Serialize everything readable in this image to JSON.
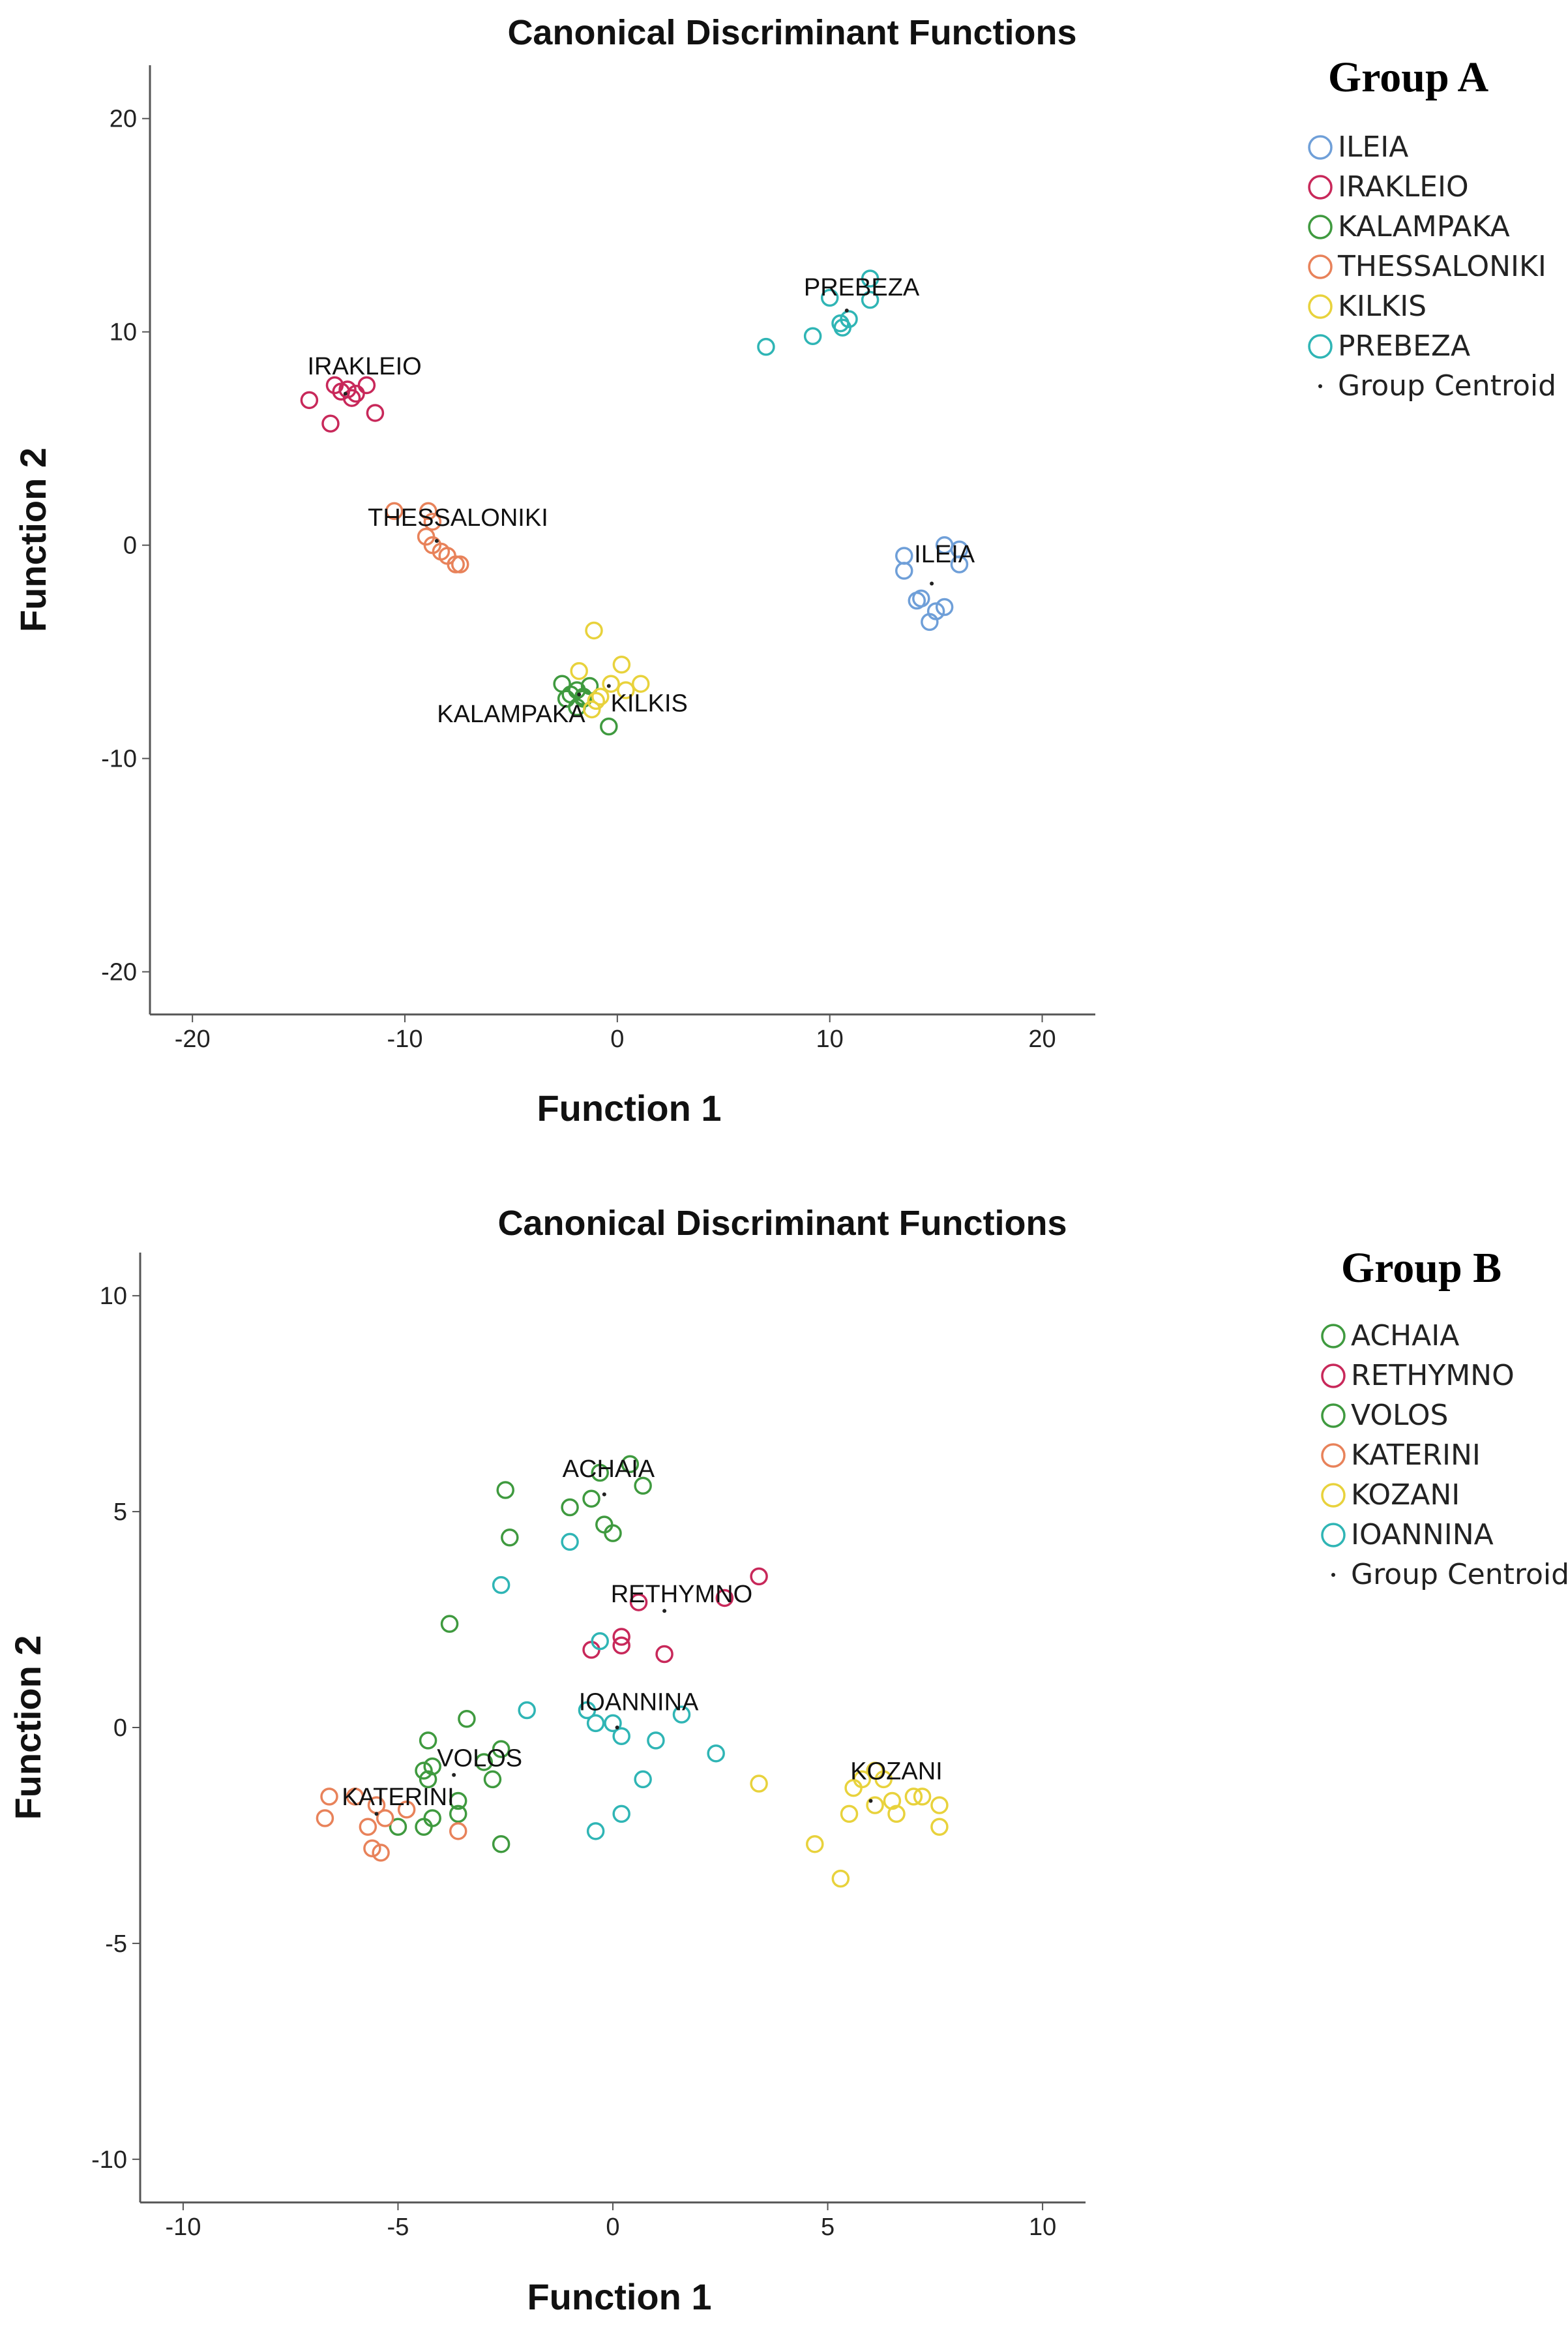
{
  "chart_data": [
    {
      "type": "scatter",
      "title": "Canonical Discriminant Functions",
      "xlabel": "Function 1",
      "ylabel": "Function 2",
      "xlim": [
        -22,
        22.5
      ],
      "ylim": [
        -22,
        22.5
      ],
      "xticks": [
        -20,
        -10,
        0,
        10,
        20
      ],
      "yticks": [
        20,
        10,
        0,
        -10,
        -20
      ],
      "legend_title": "Group A",
      "centroid_label": "Group Centroid",
      "series": [
        {
          "name": "ILEIA",
          "color": "#6f9fd8",
          "points": [
            [
              15.4,
              0
            ],
            [
              16.1,
              -0.2
            ],
            [
              16.1,
              -0.9
            ],
            [
              13.5,
              -0.5
            ],
            [
              13.5,
              -1.2
            ],
            [
              14.1,
              -2.6
            ],
            [
              14.3,
              -2.5
            ],
            [
              15.0,
              -3.1
            ],
            [
              15.4,
              -2.9
            ],
            [
              14.7,
              -3.6
            ]
          ],
          "centroid": [
            14.8,
            -1.8
          ],
          "label_pos": [
            15.4,
            -0.8
          ]
        },
        {
          "name": "IRAKLEIO",
          "color": "#c8285a",
          "points": [
            [
              -14.5,
              6.8
            ],
            [
              -13.3,
              7.5
            ],
            [
              -13.0,
              7.2
            ],
            [
              -12.7,
              7.3
            ],
            [
              -12.3,
              7.1
            ],
            [
              -12.5,
              6.9
            ],
            [
              -11.8,
              7.5
            ],
            [
              -11.4,
              6.2
            ],
            [
              -13.5,
              5.7
            ]
          ],
          "centroid": [
            -12.8,
            7.1
          ],
          "label_pos": [
            -11.9,
            8.0
          ]
        },
        {
          "name": "KALAMPAKA",
          "color": "#3f9a3f",
          "points": [
            [
              -2.6,
              -6.5
            ],
            [
              -2.2,
              -7.0
            ],
            [
              -1.9,
              -6.8
            ],
            [
              -1.6,
              -7.2
            ],
            [
              -1.3,
              -6.6
            ],
            [
              -1.9,
              -7.6
            ],
            [
              -1.6,
              -7.1
            ],
            [
              -2.4,
              -7.2
            ],
            [
              -0.4,
              -8.5
            ]
          ],
          "centroid": [
            -1.8,
            -7.0
          ],
          "label_pos": [
            -5.0,
            -8.3
          ]
        },
        {
          "name": "THESSALONIKI",
          "color": "#e8825a",
          "points": [
            [
              -10.5,
              1.6
            ],
            [
              -8.9,
              1.6
            ],
            [
              -8.7,
              1.1
            ],
            [
              -9.0,
              0.4
            ],
            [
              -8.7,
              0.0
            ],
            [
              -8.3,
              -0.3
            ],
            [
              -8.0,
              -0.5
            ],
            [
              -7.6,
              -0.9
            ],
            [
              -7.4,
              -0.9
            ]
          ],
          "centroid": [
            -8.5,
            0.2
          ],
          "label_pos": [
            -7.5,
            0.9
          ]
        },
        {
          "name": "KILKIS",
          "color": "#e8d23c",
          "points": [
            [
              -1.1,
              -4.0
            ],
            [
              -1.8,
              -5.9
            ],
            [
              0.2,
              -5.6
            ],
            [
              1.1,
              -6.5
            ],
            [
              -0.3,
              -6.5
            ],
            [
              -1.2,
              -7.7
            ],
            [
              -0.8,
              -7.1
            ],
            [
              0.4,
              -6.8
            ],
            [
              -1.0,
              -7.3
            ]
          ],
          "centroid": [
            -0.4,
            -6.6
          ],
          "label_pos": [
            1.5,
            -7.8
          ]
        },
        {
          "name": "PREBEZA",
          "color": "#2fb5b5",
          "points": [
            [
              11.9,
              12.5
            ],
            [
              10.0,
              11.6
            ],
            [
              11.9,
              11.5
            ],
            [
              10.9,
              10.6
            ],
            [
              10.6,
              10.2
            ],
            [
              10.5,
              10.4
            ],
            [
              9.2,
              9.8
            ],
            [
              7.0,
              9.3
            ]
          ],
          "centroid": [
            10.8,
            11.0
          ],
          "label_pos": [
            11.5,
            11.7
          ]
        }
      ]
    },
    {
      "type": "scatter",
      "title": "Canonical Discriminant Functions",
      "xlabel": "Function 1",
      "ylabel": "Function 2",
      "xlim": [
        -11,
        11
      ],
      "ylim": [
        -11,
        11
      ],
      "xticks": [
        -10,
        -5,
        0,
        5,
        10
      ],
      "yticks": [
        10,
        5,
        0,
        -5,
        -10
      ],
      "legend_title": "Group B",
      "centroid_label": "Group Centroid",
      "series": [
        {
          "name": "ACHAIA",
          "color": "#3f9a3f",
          "points": [
            [
              0.4,
              6.1
            ],
            [
              -0.3,
              5.9
            ],
            [
              0.7,
              5.6
            ],
            [
              -2.5,
              5.5
            ],
            [
              -1.0,
              5.1
            ],
            [
              -0.5,
              5.3
            ],
            [
              -0.2,
              4.7
            ],
            [
              0.0,
              4.5
            ],
            [
              -2.4,
              4.4
            ]
          ],
          "centroid": [
            -0.2,
            5.4
          ],
          "label_pos": [
            -0.1,
            5.8
          ]
        },
        {
          "name": "RETHYMNO",
          "color": "#c8285a",
          "points": [
            [
              3.4,
              3.5
            ],
            [
              2.6,
              3.0
            ],
            [
              0.6,
              2.9
            ],
            [
              0.2,
              2.1
            ],
            [
              0.2,
              1.9
            ],
            [
              -0.5,
              1.8
            ],
            [
              1.2,
              1.7
            ]
          ],
          "centroid": [
            1.2,
            2.7
          ],
          "label_pos": [
            1.6,
            2.9
          ]
        },
        {
          "name": "VOLOS",
          "color": "#3f9a3f",
          "points": [
            [
              -3.8,
              2.4
            ],
            [
              -3.4,
              0.2
            ],
            [
              -4.3,
              -0.3
            ],
            [
              -4.2,
              -0.9
            ],
            [
              -4.4,
              -1.0
            ],
            [
              -4.3,
              -1.2
            ],
            [
              -2.6,
              -0.5
            ],
            [
              -3.0,
              -0.8
            ],
            [
              -2.8,
              -1.2
            ],
            [
              -3.6,
              -1.7
            ],
            [
              -3.6,
              -2.0
            ],
            [
              -4.2,
              -2.1
            ],
            [
              -5.0,
              -2.3
            ],
            [
              -4.4,
              -2.3
            ],
            [
              -2.6,
              -2.7
            ]
          ],
          "centroid": [
            -3.7,
            -1.1
          ],
          "label_pos": [
            -3.1,
            -0.9
          ]
        },
        {
          "name": "KATERINI",
          "color": "#e8825a",
          "points": [
            [
              -6.6,
              -1.6
            ],
            [
              -6.0,
              -1.6
            ],
            [
              -5.5,
              -1.8
            ],
            [
              -5.3,
              -2.1
            ],
            [
              -4.8,
              -1.9
            ],
            [
              -5.7,
              -2.3
            ],
            [
              -6.7,
              -2.1
            ],
            [
              -3.6,
              -2.4
            ],
            [
              -5.6,
              -2.8
            ],
            [
              -5.4,
              -2.9
            ]
          ],
          "centroid": [
            -5.5,
            -2.0
          ],
          "label_pos": [
            -5.0,
            -1.8
          ]
        },
        {
          "name": "KOZANI",
          "color": "#e8d23c",
          "points": [
            [
              5.8,
              -1.2
            ],
            [
              6.1,
              -1.0
            ],
            [
              6.3,
              -1.2
            ],
            [
              5.6,
              -1.4
            ],
            [
              6.5,
              -1.7
            ],
            [
              7.0,
              -1.6
            ],
            [
              7.2,
              -1.6
            ],
            [
              7.6,
              -1.8
            ],
            [
              6.6,
              -2.0
            ],
            [
              6.1,
              -1.8
            ],
            [
              5.5,
              -2.0
            ],
            [
              7.6,
              -2.3
            ],
            [
              3.4,
              -1.3
            ],
            [
              4.7,
              -2.7
            ],
            [
              5.3,
              -3.5
            ]
          ],
          "centroid": [
            6.0,
            -1.7
          ],
          "label_pos": [
            6.6,
            -1.2
          ]
        },
        {
          "name": "IOANNINA",
          "color": "#2fb5b5",
          "points": [
            [
              -2.6,
              3.3
            ],
            [
              -1.0,
              4.3
            ],
            [
              -0.3,
              2.0
            ],
            [
              -2.0,
              0.4
            ],
            [
              -0.6,
              0.4
            ],
            [
              0.0,
              0.1
            ],
            [
              -0.4,
              0.1
            ],
            [
              0.2,
              -0.2
            ],
            [
              1.0,
              -0.3
            ],
            [
              1.6,
              0.3
            ],
            [
              2.4,
              -0.6
            ],
            [
              0.7,
              -1.2
            ],
            [
              0.2,
              -2.0
            ],
            [
              -0.4,
              -2.4
            ]
          ],
          "centroid": [
            0.1,
            0.0
          ],
          "label_pos": [
            0.6,
            0.4
          ]
        }
      ]
    }
  ]
}
